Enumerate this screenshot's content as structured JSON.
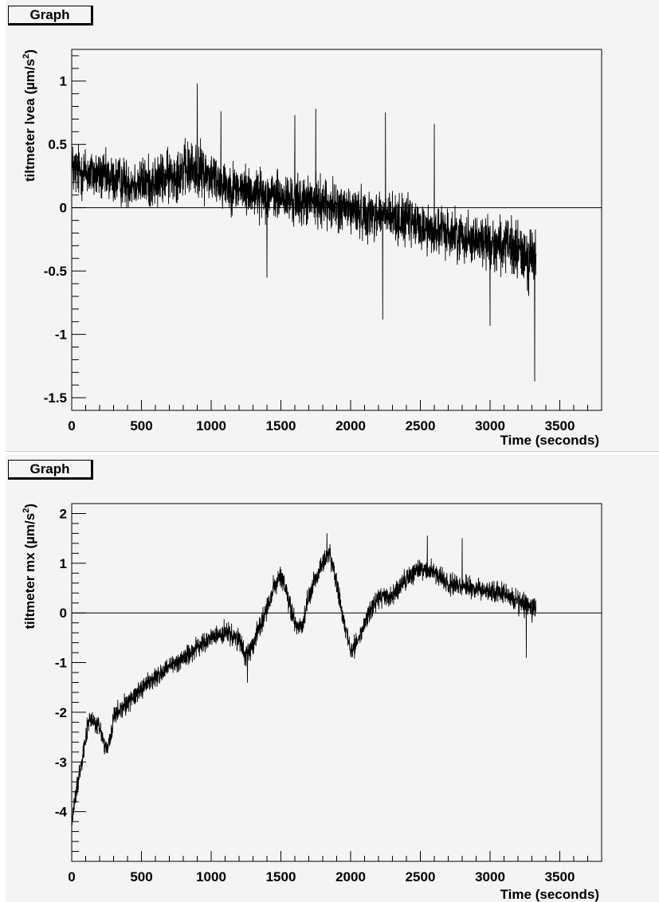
{
  "chart_data": [
    {
      "type": "line",
      "title": "Graph",
      "xlabel": "Time (seconds)",
      "ylabel": "tiltmeter lvea (µm/s²)",
      "ylabel_text": "tiltmeter lvea (",
      "ylabel_unit": "µm/s",
      "ylabel_sup": "2",
      "ylabel_close": ")",
      "xlim": [
        0,
        3800
      ],
      "ylim": [
        -1.6,
        1.25
      ],
      "x_ticks": [
        0,
        500,
        1000,
        1500,
        2000,
        2500,
        3000,
        3500
      ],
      "x_tick_labels": [
        "0",
        "500",
        "1000",
        "1500",
        "2000",
        "2500",
        "3000",
        "3500"
      ],
      "y_ticks": [
        -1.5,
        -1,
        -0.5,
        0,
        0.5,
        1
      ],
      "y_tick_labels": [
        "-1.5",
        "-1",
        "-0.5",
        "0",
        "0.5",
        "1"
      ],
      "zero_line": true,
      "grid": false,
      "series": [
        {
          "x": [
            0,
            100,
            200,
            300,
            400,
            500,
            600,
            700,
            800,
            900,
            1000,
            1100,
            1200,
            1300,
            1400,
            1500,
            1600,
            1700,
            1800,
            1900,
            2000,
            2100,
            2200,
            2300,
            2400,
            2500,
            2600,
            2700,
            2800,
            2900,
            3000,
            3100,
            3200,
            3300,
            3330
          ],
          "y": [
            0.3,
            0.28,
            0.25,
            0.22,
            0.2,
            0.2,
            0.2,
            0.25,
            0.3,
            0.3,
            0.25,
            0.18,
            0.15,
            0.12,
            0.1,
            0.08,
            0.05,
            0.05,
            0.05,
            0.0,
            -0.02,
            -0.05,
            -0.05,
            -0.08,
            -0.1,
            -0.15,
            -0.18,
            -0.2,
            -0.22,
            -0.25,
            -0.28,
            -0.3,
            -0.35,
            -0.4,
            -0.4
          ],
          "spread": [
            0.32,
            0.3,
            0.28,
            0.28,
            0.28,
            0.28,
            0.3,
            0.3,
            0.32,
            0.32,
            0.3,
            0.28,
            0.28,
            0.28,
            0.28,
            0.28,
            0.28,
            0.28,
            0.28,
            0.28,
            0.28,
            0.28,
            0.28,
            0.28,
            0.28,
            0.28,
            0.28,
            0.28,
            0.28,
            0.28,
            0.3,
            0.32,
            0.35,
            0.38,
            0.38
          ],
          "spikes": [
            [
              900,
              0.98
            ],
            [
              1070,
              0.76
            ],
            [
              1400,
              -0.55
            ],
            [
              1600,
              0.73
            ],
            [
              1750,
              0.78
            ],
            [
              2250,
              0.75
            ],
            [
              2230,
              -0.88
            ],
            [
              2600,
              0.66
            ],
            [
              3000,
              -0.93
            ],
            [
              3320,
              -1.37
            ]
          ]
        }
      ]
    },
    {
      "type": "line",
      "title": "Graph",
      "xlabel": "Time (seconds)",
      "ylabel": "tiltmeter mx (µm/s²)",
      "ylabel_text": "tiltmeter mx (",
      "ylabel_unit": "µm/s",
      "ylabel_sup": "2",
      "ylabel_close": ")",
      "xlim": [
        0,
        3800
      ],
      "ylim": [
        -5.0,
        2.2
      ],
      "x_ticks": [
        0,
        500,
        1000,
        1500,
        2000,
        2500,
        3000,
        3500
      ],
      "x_tick_labels": [
        "0",
        "500",
        "1000",
        "1500",
        "2000",
        "2500",
        "3000",
        "3500"
      ],
      "y_ticks": [
        -4,
        -3,
        -2,
        -1,
        0,
        1,
        2
      ],
      "y_tick_labels": [
        "-4",
        "-3",
        "-2",
        "-1",
        "0",
        "1",
        "2"
      ],
      "zero_line": true,
      "grid": false,
      "series": [
        {
          "x": [
            0,
            50,
            100,
            130,
            150,
            200,
            250,
            280,
            300,
            400,
            500,
            600,
            700,
            800,
            900,
            1000,
            1100,
            1200,
            1250,
            1300,
            1400,
            1450,
            1500,
            1550,
            1600,
            1650,
            1700,
            1750,
            1800,
            1850,
            1900,
            1950,
            2000,
            2050,
            2100,
            2150,
            2200,
            2300,
            2400,
            2500,
            2600,
            2700,
            2800,
            2900,
            3000,
            3100,
            3200,
            3300,
            3330
          ],
          "y": [
            -4.2,
            -3.3,
            -2.5,
            -2.1,
            -2.2,
            -2.3,
            -2.8,
            -2.5,
            -2.1,
            -1.8,
            -1.5,
            -1.3,
            -1.1,
            -0.9,
            -0.7,
            -0.5,
            -0.4,
            -0.55,
            -0.9,
            -0.6,
            0.1,
            0.5,
            0.75,
            0.3,
            -0.2,
            -0.3,
            0.3,
            0.7,
            1.0,
            1.2,
            0.6,
            -0.2,
            -0.7,
            -0.6,
            -0.2,
            0.1,
            0.3,
            0.3,
            0.7,
            0.9,
            0.8,
            0.6,
            0.55,
            0.5,
            0.45,
            0.4,
            0.25,
            0.1,
            0.1
          ],
          "spread": [
            0.3,
            0.3,
            0.3,
            0.3,
            0.3,
            0.3,
            0.3,
            0.3,
            0.3,
            0.3,
            0.3,
            0.3,
            0.3,
            0.3,
            0.3,
            0.3,
            0.3,
            0.3,
            0.3,
            0.3,
            0.3,
            0.3,
            0.3,
            0.3,
            0.3,
            0.3,
            0.3,
            0.3,
            0.3,
            0.3,
            0.3,
            0.3,
            0.3,
            0.3,
            0.3,
            0.3,
            0.3,
            0.3,
            0.3,
            0.3,
            0.3,
            0.3,
            0.3,
            0.3,
            0.3,
            0.3,
            0.35,
            0.35,
            0.35
          ],
          "spikes": [
            [
              1830,
              1.6
            ],
            [
              2550,
              1.55
            ],
            [
              1260,
              -1.4
            ],
            [
              3260,
              -0.9
            ],
            [
              2800,
              1.5
            ]
          ]
        }
      ]
    }
  ]
}
